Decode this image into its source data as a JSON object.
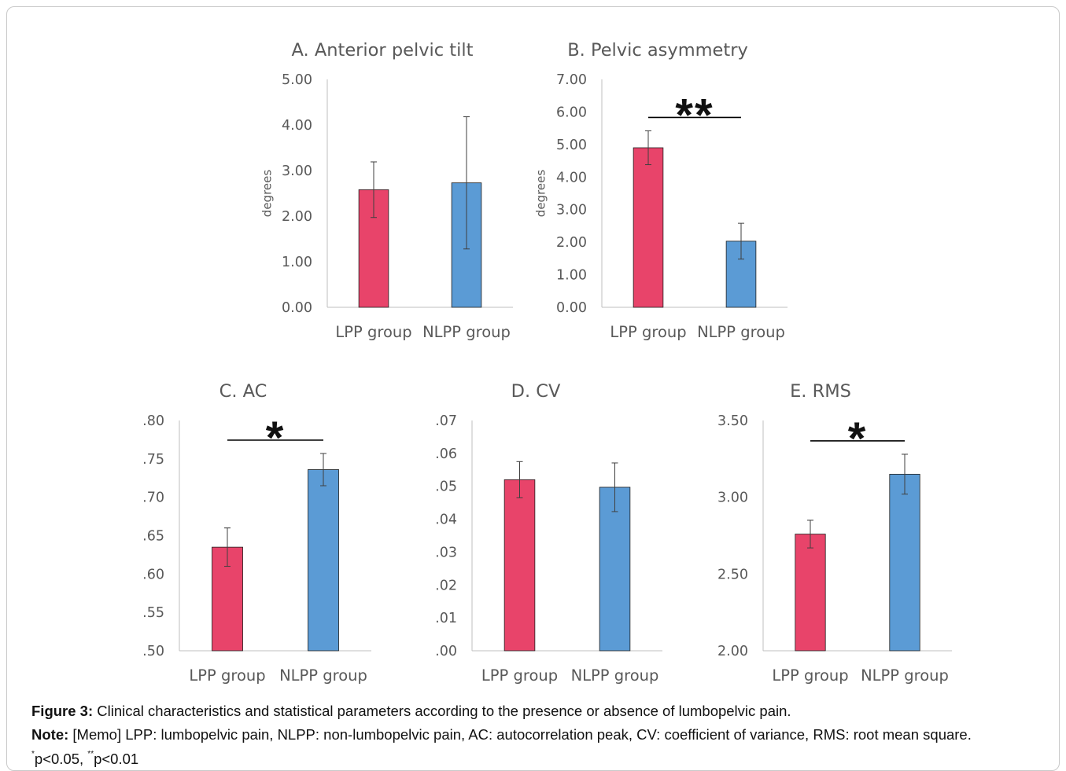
{
  "bar_colors": [
    "#E8446A",
    "#5B9BD5"
  ],
  "chart_data": [
    {
      "type": "bar",
      "title": "A. Anterior pelvic tilt",
      "ylabel": "degrees",
      "categories": [
        "LPP group",
        "NLPP group"
      ],
      "values": [
        2.58,
        2.73
      ],
      "error_bars": [
        0.61,
        1.45
      ],
      "ylim": [
        0,
        5
      ],
      "yticks": [
        0,
        1,
        2,
        3,
        4,
        5
      ],
      "ytick_labels": [
        "0.00",
        "1.00",
        "2.00",
        "3.00",
        "4.00",
        "5.00"
      ],
      "grid": false
    },
    {
      "type": "bar",
      "title": "B. Pelvic asymmetry",
      "ylabel": "degrees",
      "categories": [
        "LPP group",
        "NLPP group"
      ],
      "values": [
        4.9,
        2.03
      ],
      "error_bars": [
        0.52,
        0.55
      ],
      "ylim": [
        0,
        7
      ],
      "yticks": [
        0,
        1,
        2,
        3,
        4,
        5,
        6,
        7
      ],
      "ytick_labels": [
        "0.00",
        "1.00",
        "2.00",
        "3.00",
        "4.00",
        "5.00",
        "6.00",
        "7.00"
      ],
      "significance": {
        "label": "**",
        "between": [
          0,
          1
        ]
      },
      "grid": false
    },
    {
      "type": "bar",
      "title": "C. AC",
      "categories": [
        "LPP group",
        "NLPP group"
      ],
      "values": [
        0.635,
        0.736
      ],
      "error_bars": [
        0.025,
        0.021
      ],
      "ylim": [
        0.5,
        0.8
      ],
      "yticks": [
        0.5,
        0.55,
        0.6,
        0.65,
        0.7,
        0.75,
        0.8
      ],
      "ytick_labels": [
        ".50",
        ".55",
        ".60",
        ".65",
        ".70",
        ".75",
        ".80"
      ],
      "significance": {
        "label": "*",
        "between": [
          0,
          1
        ]
      },
      "grid": false
    },
    {
      "type": "bar",
      "title": "D. CV",
      "categories": [
        "LPP group",
        "NLPP group"
      ],
      "values": [
        0.052,
        0.0497
      ],
      "error_bars": [
        0.0055,
        0.0074
      ],
      "ylim": [
        0,
        0.07
      ],
      "yticks": [
        0,
        0.01,
        0.02,
        0.03,
        0.04,
        0.05,
        0.06,
        0.07
      ],
      "ytick_labels": [
        ".00",
        ".01",
        ".02",
        ".03",
        ".04",
        ".05",
        ".06",
        ".07"
      ],
      "grid": false
    },
    {
      "type": "bar",
      "title": "E. RMS",
      "categories": [
        "LPP group",
        "NLPP group"
      ],
      "values": [
        2.76,
        3.15
      ],
      "error_bars": [
        0.09,
        0.13
      ],
      "ylim": [
        2,
        3.5
      ],
      "yticks": [
        2,
        2.5,
        3,
        3.5
      ],
      "ytick_labels": [
        "2.00",
        "2.50",
        "3.00",
        "3.50"
      ],
      "significance": {
        "label": "*",
        "between": [
          0,
          1
        ]
      },
      "grid": false
    }
  ],
  "caption": {
    "figure_label": "Figure 3:",
    "figure_text": "Clinical characteristics and statistical parameters according to the presence or absence of lumbopelvic pain.",
    "note_label": "Note:",
    "note_text": "[Memo] LPP: lumbopelvic pain, NLPP: non-lumbopelvic pain, AC: autocorrelation peak, CV: coefficient of variance, RMS: root mean square.",
    "p_levels": [
      {
        "mark": "*",
        "text": "p<0.05,"
      },
      {
        "mark": "**",
        "text": "p<0.01"
      }
    ]
  }
}
